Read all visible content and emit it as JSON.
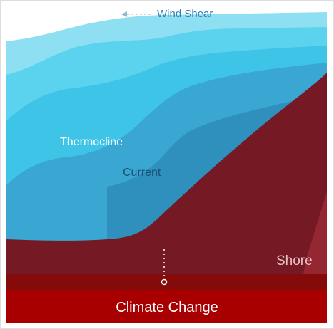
{
  "labels": {
    "wind_shear": "Wind Shear",
    "thermocline": "Thermocline",
    "current": "Current",
    "shore": "Shore",
    "climate_change": "Climate Change"
  },
  "colors": {
    "frame": "#dddddd",
    "water_surface": "#8fdff3",
    "water_band_1": "#5bd3ef",
    "water_band_2": "#3ec4e6",
    "water_deep": "#3aa7d3",
    "water_current": "#2f8fbd",
    "shore_dark": "#751a24",
    "shore_light": "#9a2a35",
    "seabed_band": "#850a0a",
    "climate_bar": "#a80000",
    "arrow": "#8fb8cc",
    "wind_text": "#2a7fb0",
    "thermo_text": "#ffffff",
    "current_text": "#1c4f76",
    "shore_text": "#e8c0c4",
    "climate_text": "#ffffff",
    "marker": "#ffffff"
  }
}
